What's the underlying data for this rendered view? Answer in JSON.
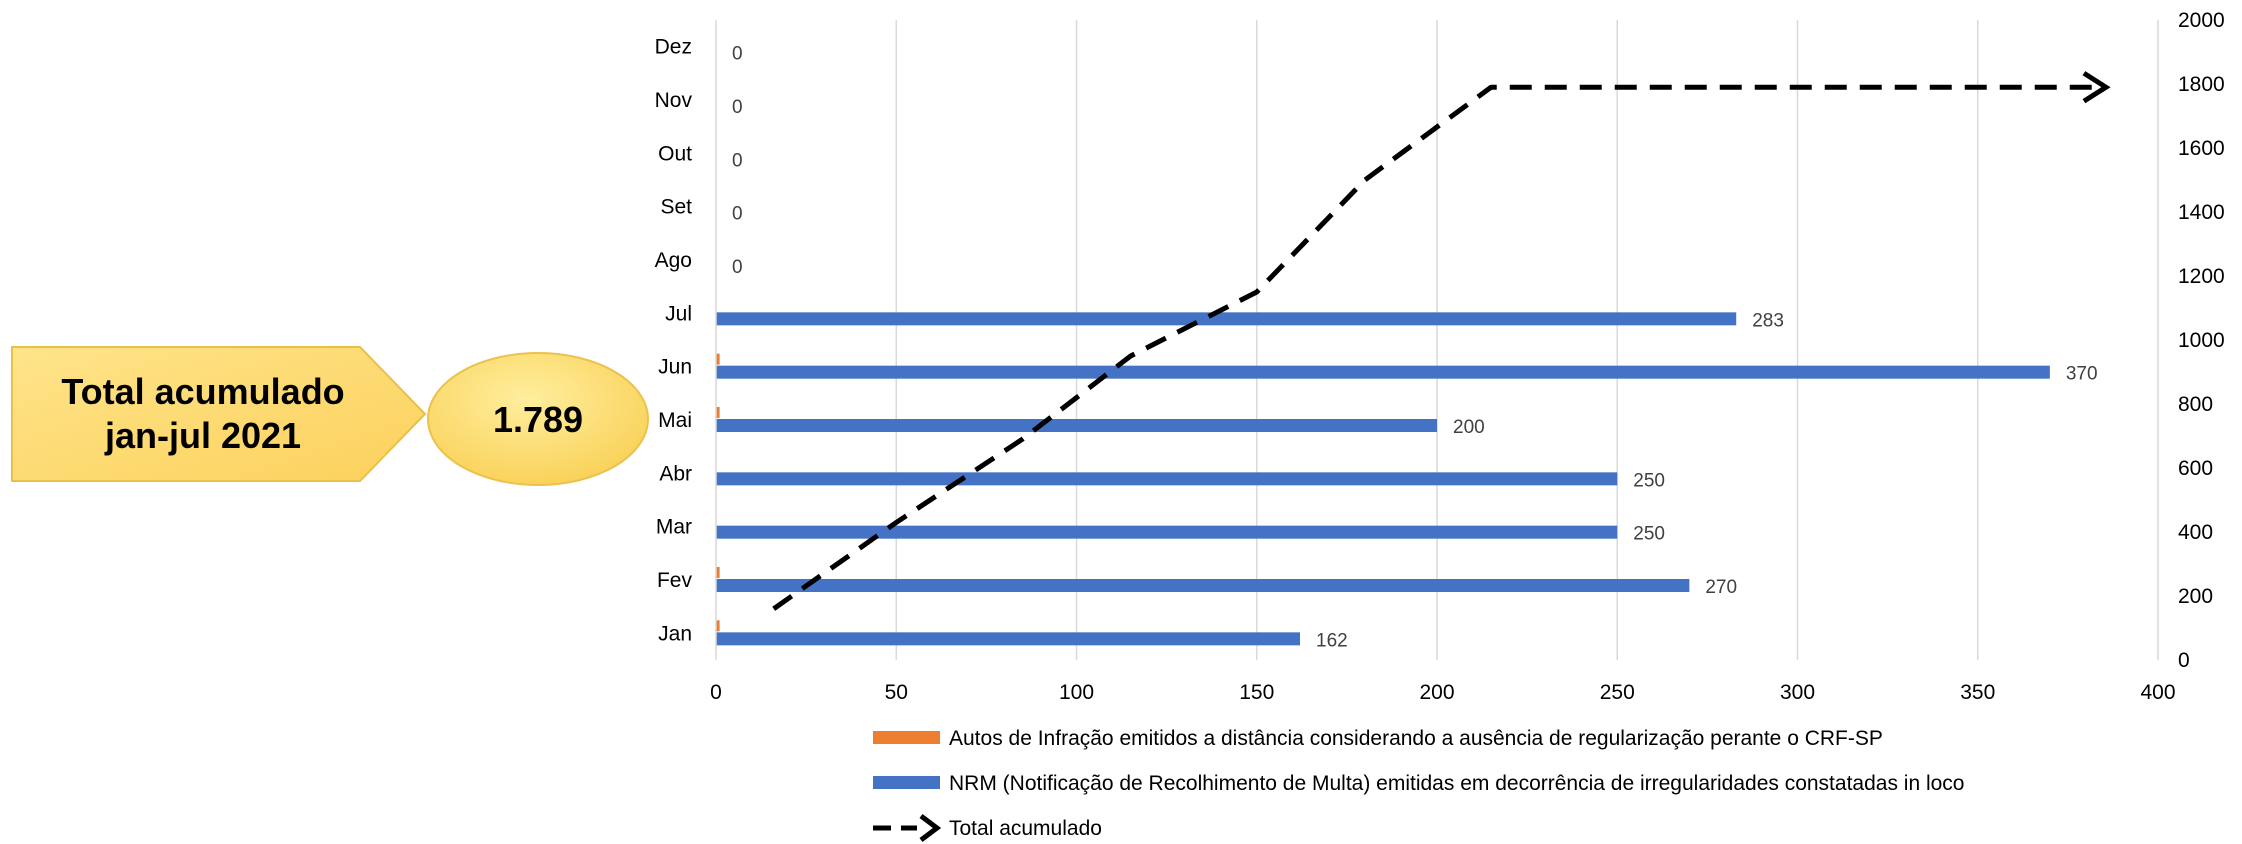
{
  "callout": {
    "label_line1": "Total acumulado",
    "label_line2": "jan-jul 2021",
    "value": "1.789"
  },
  "chart_data": {
    "type": "bar",
    "orientation": "horizontal",
    "categories": [
      "Jan",
      "Fev",
      "Mar",
      "Abr",
      "Mai",
      "Jun",
      "Jul",
      "Ago",
      "Set",
      "Out",
      "Nov",
      "Dez"
    ],
    "series": [
      {
        "name": "Autos de Infração emitidos a distância considerando a ausência de regularização perante o CRF-SP",
        "color": "#ED7D31",
        "values": [
          1,
          1,
          0,
          0,
          1,
          1,
          0,
          0,
          0,
          0,
          0,
          0
        ]
      },
      {
        "name": "NRM (Notificação de Recolhimento de Multa) emitidas em decorrência de irregularidades constatadas in loco",
        "color": "#4472C4",
        "values": [
          162,
          270,
          250,
          250,
          200,
          370,
          283,
          0,
          0,
          0,
          0,
          0
        ],
        "data_labels": [
          "162",
          "270",
          "250",
          "250",
          "200",
          "370",
          "283",
          "0",
          "0",
          "0",
          "0",
          "0"
        ]
      },
      {
        "name": "Total acumulado",
        "type": "line",
        "style": "dashed-arrow",
        "color": "#000000",
        "axis": "secondary",
        "points": [
          {
            "x": 16,
            "y": 160
          },
          {
            "x": 50,
            "y": 430
          },
          {
            "x": 85,
            "y": 690
          },
          {
            "x": 115,
            "y": 950
          },
          {
            "x": 150,
            "y": 1150
          },
          {
            "x": 180,
            "y": 1500
          },
          {
            "x": 215,
            "y": 1790
          },
          {
            "x": 385,
            "y": 1790
          }
        ]
      }
    ],
    "x_axis": {
      "min": 0,
      "max": 400,
      "ticks": [
        "0",
        "50",
        "100",
        "150",
        "200",
        "250",
        "300",
        "350",
        "400"
      ]
    },
    "y2_axis": {
      "min": 0,
      "max": 2000,
      "ticks": [
        "0",
        "200",
        "400",
        "600",
        "800",
        "1000",
        "1200",
        "1400",
        "1600",
        "1800",
        "2000"
      ]
    },
    "grid": "vertical",
    "legend_position": "bottom"
  }
}
